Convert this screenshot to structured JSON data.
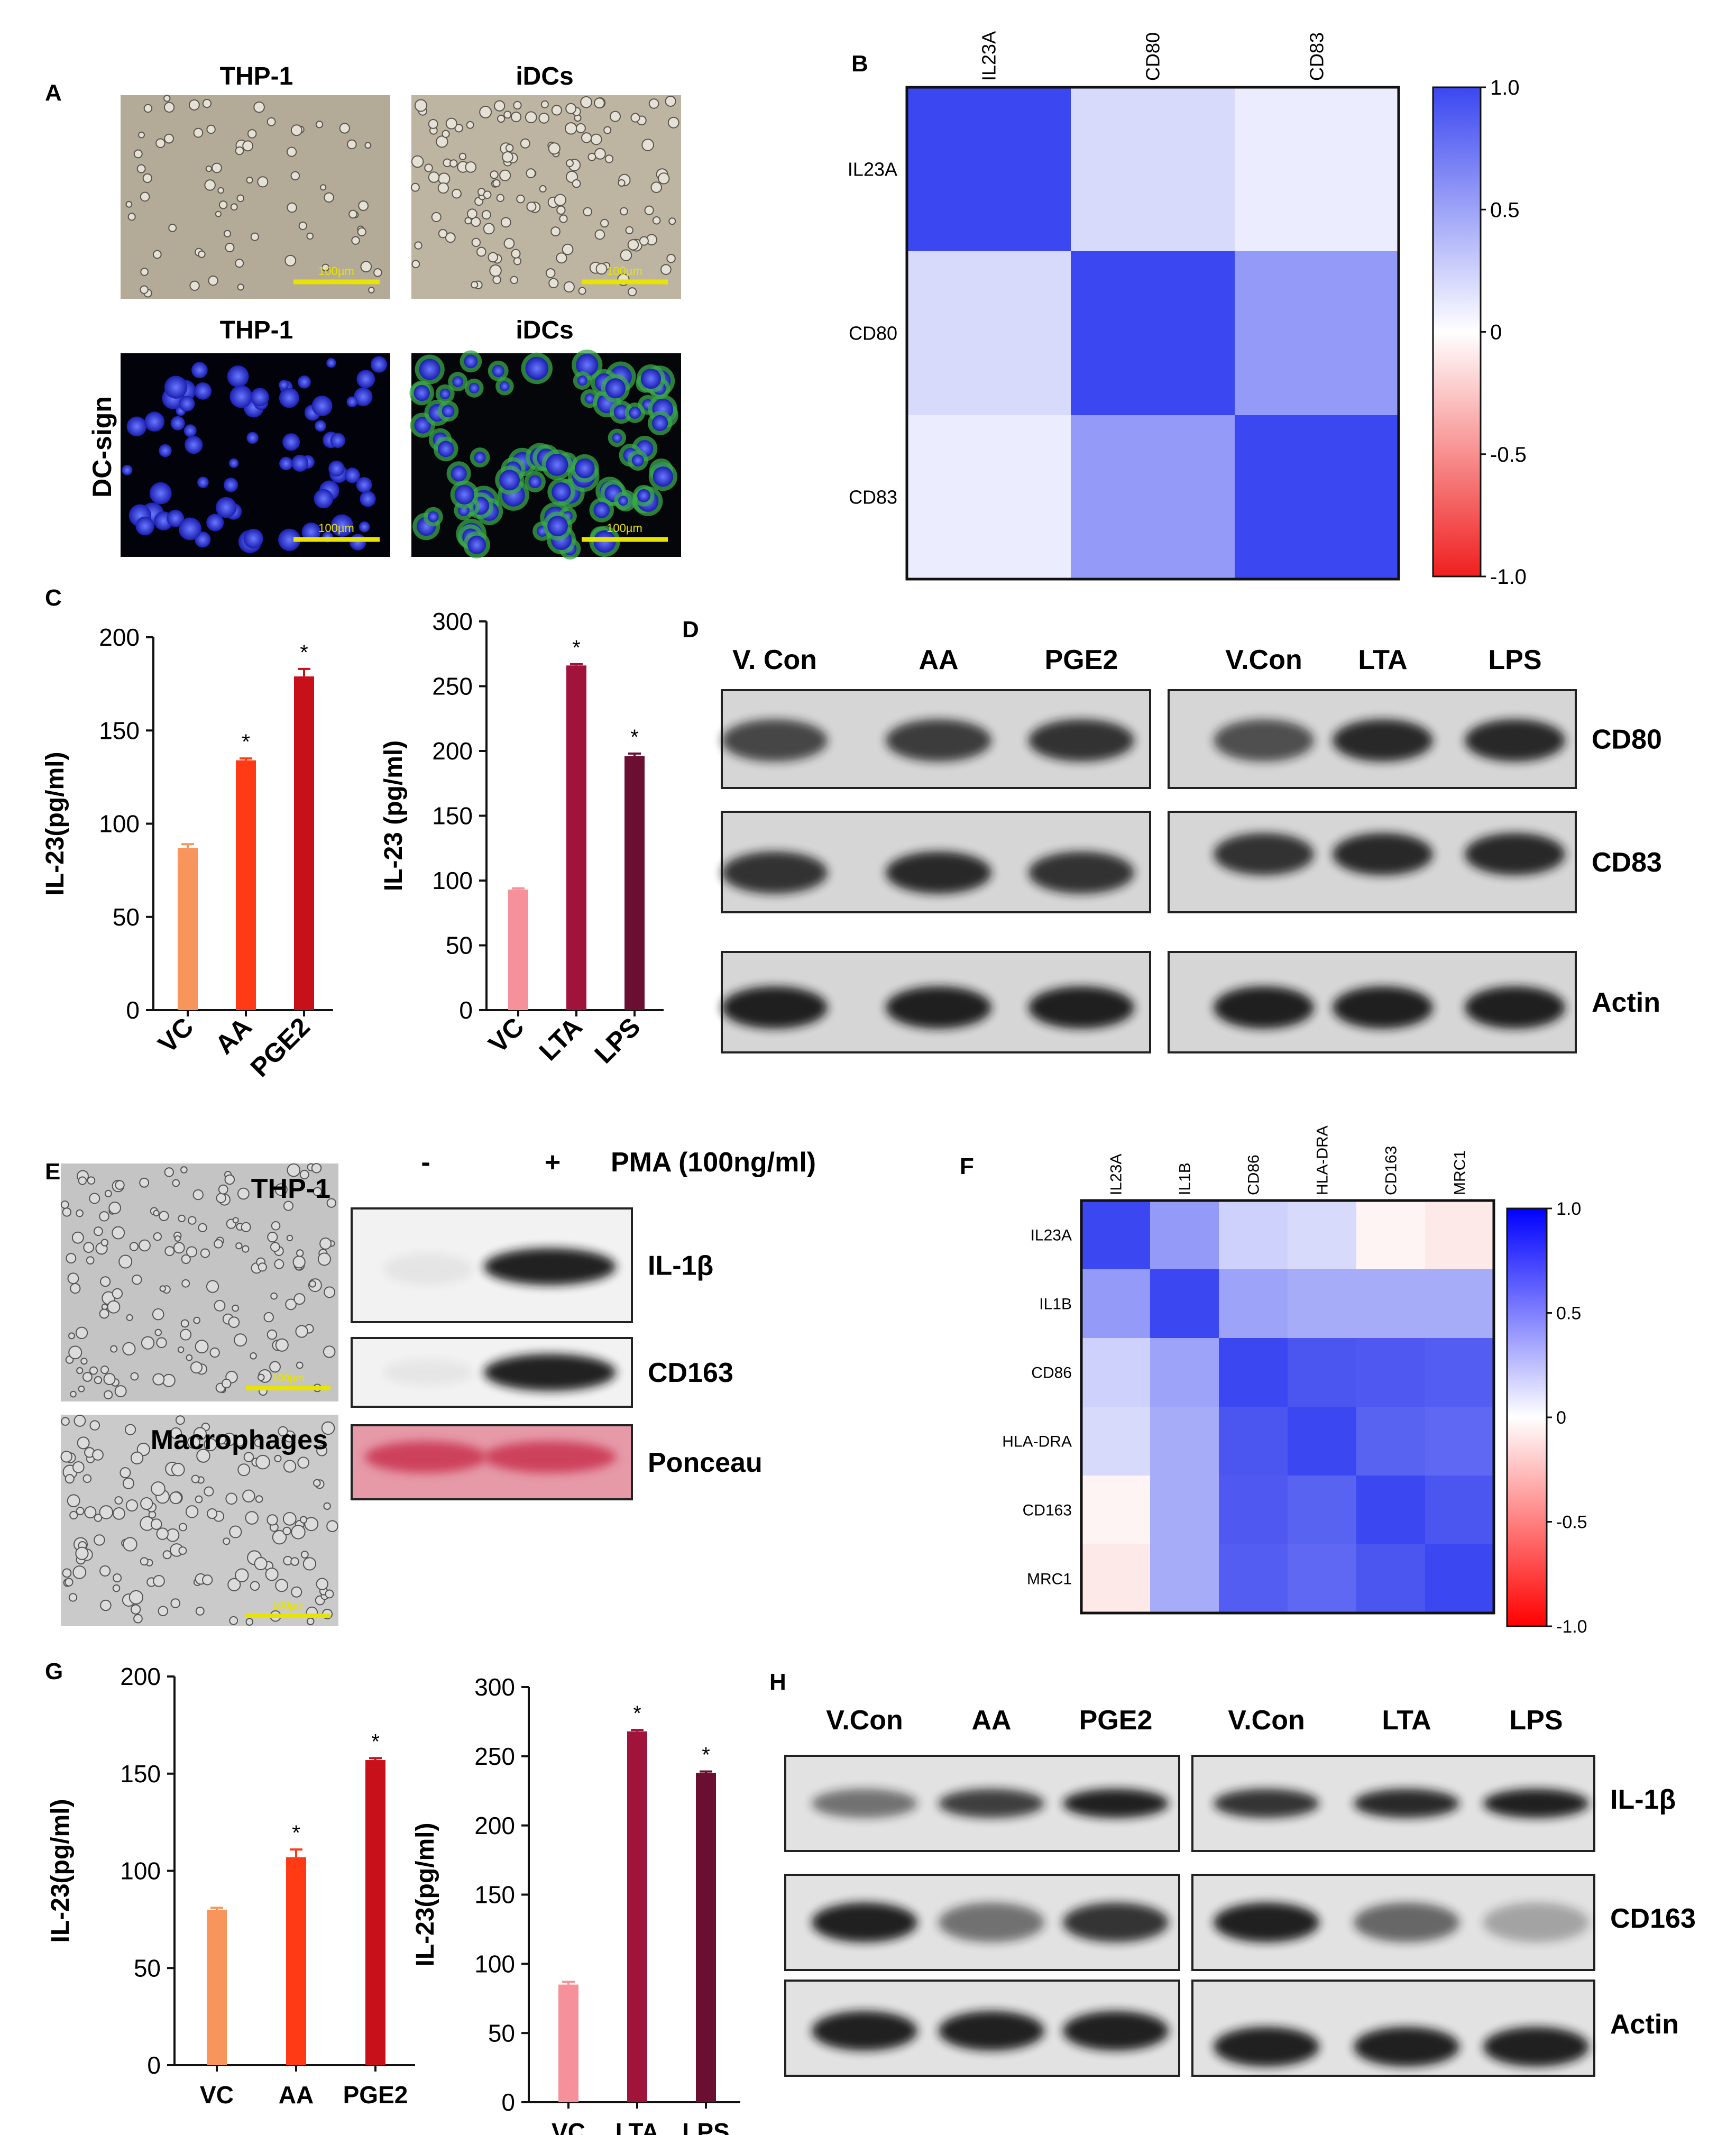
{
  "panels": {
    "A": {
      "letter": "A",
      "images": [
        {
          "title": "THP-1",
          "scale": "100µm"
        },
        {
          "title": "iDCs",
          "scale": "100µm"
        },
        {
          "title": "THP-1",
          "scale": "100µm"
        },
        {
          "title": "iDCs",
          "scale": "100µm"
        }
      ],
      "row_label": "DC-sign"
    },
    "B": {
      "letter": "B"
    },
    "C": {
      "letter": "C"
    },
    "D": {
      "letter": "D",
      "lanes_left": [
        "V. Con",
        "AA",
        "PGE2"
      ],
      "lanes_right": [
        "V.Con",
        "LTA",
        "LPS"
      ],
      "rows": [
        "CD80",
        "CD83",
        "Actin"
      ]
    },
    "E": {
      "letter": "E",
      "images": [
        {
          "title": "THP-1",
          "scale": "100µm"
        },
        {
          "title": "Macrophages",
          "scale": "100µm"
        }
      ],
      "minus": "-",
      "plus": "+",
      "treatment": "PMA (100ng/ml)",
      "rows": [
        "IL-1β",
        "CD163",
        "Ponceau"
      ]
    },
    "F": {
      "letter": "F"
    },
    "G": {
      "letter": "G"
    },
    "H": {
      "letter": "H",
      "lanes_left": [
        "V.Con",
        "AA",
        "PGE2"
      ],
      "lanes_right": [
        "V.Con",
        "LTA",
        "LPS"
      ],
      "rows": [
        "IL-1β",
        "CD163",
        "Actin"
      ]
    }
  },
  "colors": {
    "heat_pos": "#3b47f0",
    "heat_zero": "#ffffff",
    "heat_neg": "#f01f1f",
    "vc": "#f7955c",
    "aa": "#ff3a14",
    "pge2": "#c8101a",
    "vc2": "#f6909a",
    "lta": "#a0143c",
    "lps": "#6b0f32",
    "scale_bar": "#e8e400",
    "ponceau": "#d9566b"
  },
  "chart_data": [
    {
      "id": "B-heatmap",
      "type": "heatmap",
      "rows": [
        "IL23A",
        "CD80",
        "CD83"
      ],
      "cols": [
        "IL23A",
        "CD80",
        "CD83"
      ],
      "values": [
        [
          1.0,
          0.2,
          0.1
        ],
        [
          0.2,
          1.0,
          0.55
        ],
        [
          0.1,
          0.55,
          1.0
        ]
      ],
      "colorbar": {
        "min": -1.0,
        "max": 1.0,
        "ticks": [
          "1.0",
          "0.5",
          "0",
          "-0.5",
          "-1.0"
        ],
        "tick_values": [
          1,
          0.5,
          0,
          -0.5,
          -1
        ]
      }
    },
    {
      "id": "C-left",
      "type": "bar",
      "categories": [
        "VC",
        "AA",
        "PGE2"
      ],
      "values": [
        87,
        134,
        179
      ],
      "errors": [
        2,
        1,
        4
      ],
      "sig": [
        "",
        "*",
        "*"
      ],
      "ylabel": "IL-23(pg/ml)",
      "ylim": [
        0,
        200
      ],
      "yticks": [
        0,
        50,
        100,
        150,
        200
      ],
      "colors": [
        "#f7955c",
        "#ff3a14",
        "#c8101a"
      ]
    },
    {
      "id": "C-right",
      "type": "bar",
      "categories": [
        "VC",
        "LTA",
        "LPS"
      ],
      "values": [
        93,
        266,
        196
      ],
      "errors": [
        1,
        1,
        2
      ],
      "sig": [
        "",
        "*",
        "*"
      ],
      "ylabel": "IL-23 (pg/ml)",
      "ylim": [
        0,
        300
      ],
      "yticks": [
        0,
        50,
        100,
        150,
        200,
        250,
        300
      ],
      "colors": [
        "#f6909a",
        "#a0143c",
        "#6b0f32"
      ]
    },
    {
      "id": "F-heatmap",
      "type": "heatmap",
      "rows": [
        "IL23A",
        "IL1B",
        "CD86",
        "HLA-DRA",
        "CD163",
        "MRC1"
      ],
      "cols": [
        "IL23A",
        "IL1B",
        "CD86",
        "HLA-DRA",
        "CD163",
        "MRC1"
      ],
      "values": [
        [
          1.0,
          0.55,
          0.25,
          0.2,
          -0.05,
          -0.1
        ],
        [
          0.55,
          1.0,
          0.5,
          0.45,
          0.45,
          0.45
        ],
        [
          0.25,
          0.5,
          1.0,
          0.92,
          0.9,
          0.88
        ],
        [
          0.2,
          0.45,
          0.92,
          1.0,
          0.85,
          0.82
        ],
        [
          -0.05,
          0.45,
          0.9,
          0.85,
          1.0,
          0.92
        ],
        [
          -0.1,
          0.45,
          0.88,
          0.82,
          0.92,
          1.0
        ]
      ],
      "colorbar": {
        "min": -1.0,
        "max": 1.0,
        "ticks": [
          "1.0",
          "0.5",
          "0",
          "-0.5",
          "-1.0"
        ],
        "tick_values": [
          1,
          0.5,
          0,
          -0.5,
          -1
        ]
      }
    },
    {
      "id": "G-left",
      "type": "bar",
      "categories": [
        "VC",
        "AA",
        "PGE2"
      ],
      "values": [
        80,
        107,
        157
      ],
      "errors": [
        1,
        4,
        1
      ],
      "sig": [
        "",
        "*",
        "*"
      ],
      "ylabel": "IL-23(pg/ml)",
      "ylim": [
        0,
        200
      ],
      "yticks": [
        0,
        50,
        100,
        150,
        200
      ],
      "colors": [
        "#f7955c",
        "#ff3a14",
        "#c8101a"
      ]
    },
    {
      "id": "G-right",
      "type": "bar",
      "categories": [
        "VC",
        "LTA",
        "LPS"
      ],
      "values": [
        85,
        268,
        238
      ],
      "errors": [
        2,
        1,
        1
      ],
      "sig": [
        "",
        "*",
        "*"
      ],
      "ylabel": "IL-23(pg/ml)",
      "ylim": [
        0,
        300
      ],
      "yticks": [
        0,
        50,
        100,
        150,
        200,
        250,
        300
      ],
      "colors": [
        "#f6909a",
        "#a0143c",
        "#6b0f32"
      ]
    }
  ]
}
